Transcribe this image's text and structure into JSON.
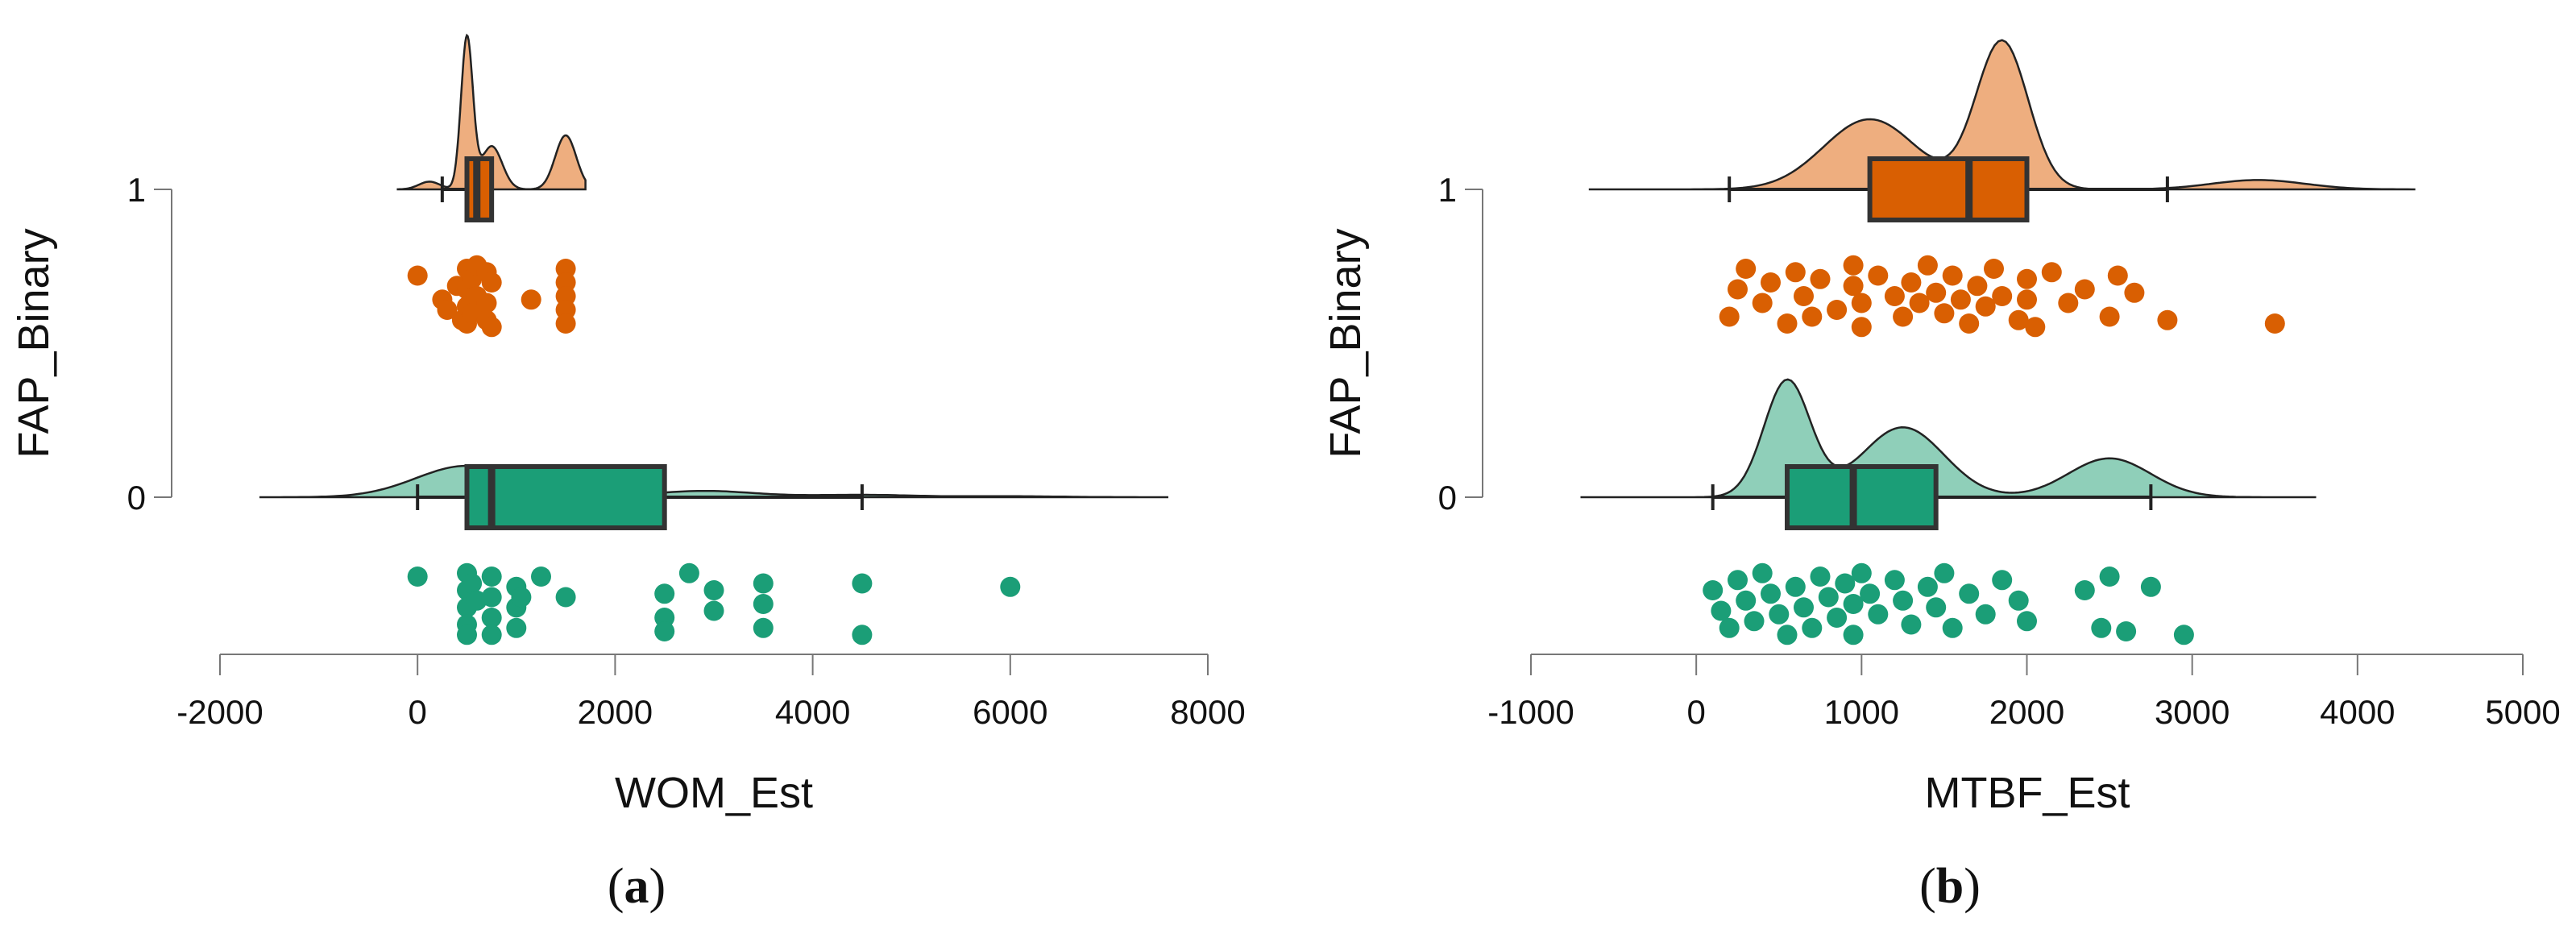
{
  "colors": {
    "orange_fill": "#EEAE7F",
    "orange_box": "#D95F02",
    "green_fill": "#8FCFB9",
    "green_box": "#1B9E77",
    "outline": "#333333",
    "axis": "#777777",
    "text": "#111111"
  },
  "chart_data": [
    {
      "type": "raincloud",
      "caption_letter": "a",
      "caption_left": "(",
      "caption_right": ")",
      "xlabel": "WOM_Est",
      "ylabel": "FAP_Binary",
      "xlim": [
        -2000,
        8000
      ],
      "xticks": [
        -2000,
        0,
        2000,
        4000,
        6000,
        8000
      ],
      "xtick_labels": [
        "-2000",
        "0",
        "2000",
        "4000",
        "6000",
        "8000"
      ],
      "yticks": [
        0,
        1
      ],
      "ytick_labels": [
        "0",
        "1"
      ],
      "groups": [
        {
          "name": "1",
          "color": "orange",
          "density_range": [
            -200,
            1700
          ],
          "density_peaks": [
            [
              500,
              0.98
            ],
            [
              750,
              0.28
            ],
            [
              1500,
              0.35
            ],
            [
              120,
              0.05
            ]
          ],
          "box": {
            "whisker_low": 250,
            "q1": 500,
            "median": 600,
            "q3": 750,
            "whisker_high": 750
          },
          "points": [
            [
              0,
              0.2
            ],
            [
              250,
              0.55
            ],
            [
              300,
              0.7
            ],
            [
              400,
              0.35
            ],
            [
              450,
              0.85
            ],
            [
              500,
              0.1
            ],
            [
              500,
              0.4
            ],
            [
              500,
              0.65
            ],
            [
              500,
              0.9
            ],
            [
              550,
              0.25
            ],
            [
              550,
              0.75
            ],
            [
              600,
              0.05
            ],
            [
              600,
              0.5
            ],
            [
              700,
              0.15
            ],
            [
              700,
              0.6
            ],
            [
              700,
              0.85
            ],
            [
              750,
              0.3
            ],
            [
              750,
              0.95
            ],
            [
              1150,
              0.55
            ],
            [
              1500,
              0.1
            ],
            [
              1500,
              0.3
            ],
            [
              1500,
              0.5
            ],
            [
              1500,
              0.7
            ],
            [
              1500,
              0.9
            ]
          ]
        },
        {
          "name": "0",
          "color": "green",
          "density_range": [
            -1600,
            7600
          ],
          "density_peaks": [
            [
              500,
              0.2
            ],
            [
              2900,
              0.04
            ],
            [
              4500,
              0.015
            ],
            [
              6000,
              0.006
            ]
          ],
          "box": {
            "whisker_low": 0,
            "q1": 500,
            "median": 750,
            "q3": 2500,
            "whisker_high": 4500
          },
          "points": [
            [
              0,
              0.1
            ],
            [
              500,
              0.05
            ],
            [
              500,
              0.3
            ],
            [
              500,
              0.55
            ],
            [
              500,
              0.8
            ],
            [
              500,
              0.95
            ],
            [
              550,
              0.2
            ],
            [
              600,
              0.45
            ],
            [
              750,
              0.1
            ],
            [
              750,
              0.4
            ],
            [
              750,
              0.7
            ],
            [
              750,
              0.95
            ],
            [
              1000,
              0.25
            ],
            [
              1000,
              0.55
            ],
            [
              1000,
              0.85
            ],
            [
              1050,
              0.4
            ],
            [
              1250,
              0.1
            ],
            [
              1500,
              0.4
            ],
            [
              2500,
              0.35
            ],
            [
              2500,
              0.7
            ],
            [
              2500,
              0.9
            ],
            [
              2750,
              0.05
            ],
            [
              3000,
              0.3
            ],
            [
              3000,
              0.6
            ],
            [
              3500,
              0.2
            ],
            [
              3500,
              0.5
            ],
            [
              3500,
              0.85
            ],
            [
              4500,
              0.2
            ],
            [
              4500,
              0.95
            ],
            [
              6000,
              0.25
            ]
          ]
        }
      ]
    },
    {
      "type": "raincloud",
      "caption_letter": "b",
      "caption_left": "(",
      "caption_right": ")",
      "xlabel": "MTBF_Est",
      "ylabel": "FAP_Binary",
      "xlim": [
        -1000,
        5000
      ],
      "xticks": [
        -1000,
        0,
        1000,
        2000,
        3000,
        4000,
        5000
      ],
      "xtick_labels": [
        "-1000",
        "0",
        "1000",
        "2000",
        "3000",
        "4000",
        "5000"
      ],
      "yticks": [
        0,
        1
      ],
      "ytick_labels": [
        "0",
        "1"
      ],
      "groups": [
        {
          "name": "1",
          "color": "orange",
          "density_range": [
            -650,
            4350
          ],
          "density_peaks": [
            [
              1850,
              0.95
            ],
            [
              1050,
              0.45
            ],
            [
              3400,
              0.06
            ]
          ],
          "box": {
            "whisker_low": 200,
            "q1": 1050,
            "median": 1650,
            "q3": 2000,
            "whisker_high": 2850
          },
          "points": [
            [
              200,
              0.8
            ],
            [
              250,
              0.4
            ],
            [
              300,
              0.1
            ],
            [
              400,
              0.6
            ],
            [
              450,
              0.3
            ],
            [
              550,
              0.9
            ],
            [
              600,
              0.15
            ],
            [
              650,
              0.5
            ],
            [
              700,
              0.8
            ],
            [
              750,
              0.25
            ],
            [
              850,
              0.7
            ],
            [
              950,
              0.05
            ],
            [
              950,
              0.35
            ],
            [
              1000,
              0.6
            ],
            [
              1000,
              0.95
            ],
            [
              1100,
              0.2
            ],
            [
              1200,
              0.5
            ],
            [
              1250,
              0.8
            ],
            [
              1300,
              0.3
            ],
            [
              1350,
              0.6
            ],
            [
              1400,
              0.05
            ],
            [
              1450,
              0.45
            ],
            [
              1500,
              0.75
            ],
            [
              1550,
              0.2
            ],
            [
              1600,
              0.55
            ],
            [
              1650,
              0.9
            ],
            [
              1700,
              0.35
            ],
            [
              1750,
              0.65
            ],
            [
              1800,
              0.1
            ],
            [
              1850,
              0.5
            ],
            [
              1950,
              0.85
            ],
            [
              2000,
              0.25
            ],
            [
              2000,
              0.55
            ],
            [
              2050,
              0.95
            ],
            [
              2150,
              0.15
            ],
            [
              2250,
              0.6
            ],
            [
              2350,
              0.4
            ],
            [
              2500,
              0.8
            ],
            [
              2550,
              0.2
            ],
            [
              2650,
              0.45
            ],
            [
              2850,
              0.85
            ],
            [
              3500,
              0.9
            ]
          ]
        },
        {
          "name": "0",
          "color": "green",
          "density_range": [
            -700,
            3750
          ],
          "density_peaks": [
            [
              550,
              0.75
            ],
            [
              1250,
              0.45
            ],
            [
              2500,
              0.25
            ]
          ],
          "box": {
            "whisker_low": 100,
            "q1": 550,
            "median": 950,
            "q3": 1450,
            "whisker_high": 2750
          },
          "points": [
            [
              100,
              0.3
            ],
            [
              150,
              0.6
            ],
            [
              200,
              0.85
            ],
            [
              250,
              0.15
            ],
            [
              300,
              0.45
            ],
            [
              350,
              0.75
            ],
            [
              400,
              0.05
            ],
            [
              450,
              0.35
            ],
            [
              500,
              0.65
            ],
            [
              550,
              0.95
            ],
            [
              600,
              0.25
            ],
            [
              650,
              0.55
            ],
            [
              700,
              0.85
            ],
            [
              750,
              0.1
            ],
            [
              800,
              0.4
            ],
            [
              850,
              0.7
            ],
            [
              900,
              0.2
            ],
            [
              950,
              0.5
            ],
            [
              950,
              0.95
            ],
            [
              1000,
              0.05
            ],
            [
              1050,
              0.35
            ],
            [
              1100,
              0.65
            ],
            [
              1200,
              0.15
            ],
            [
              1250,
              0.45
            ],
            [
              1300,
              0.8
            ],
            [
              1400,
              0.25
            ],
            [
              1450,
              0.55
            ],
            [
              1500,
              0.05
            ],
            [
              1550,
              0.85
            ],
            [
              1650,
              0.35
            ],
            [
              1750,
              0.65
            ],
            [
              1850,
              0.15
            ],
            [
              1950,
              0.45
            ],
            [
              2000,
              0.75
            ],
            [
              2350,
              0.3
            ],
            [
              2450,
              0.85
            ],
            [
              2500,
              0.1
            ],
            [
              2600,
              0.9
            ],
            [
              2750,
              0.25
            ],
            [
              2950,
              0.95
            ]
          ]
        }
      ]
    }
  ]
}
